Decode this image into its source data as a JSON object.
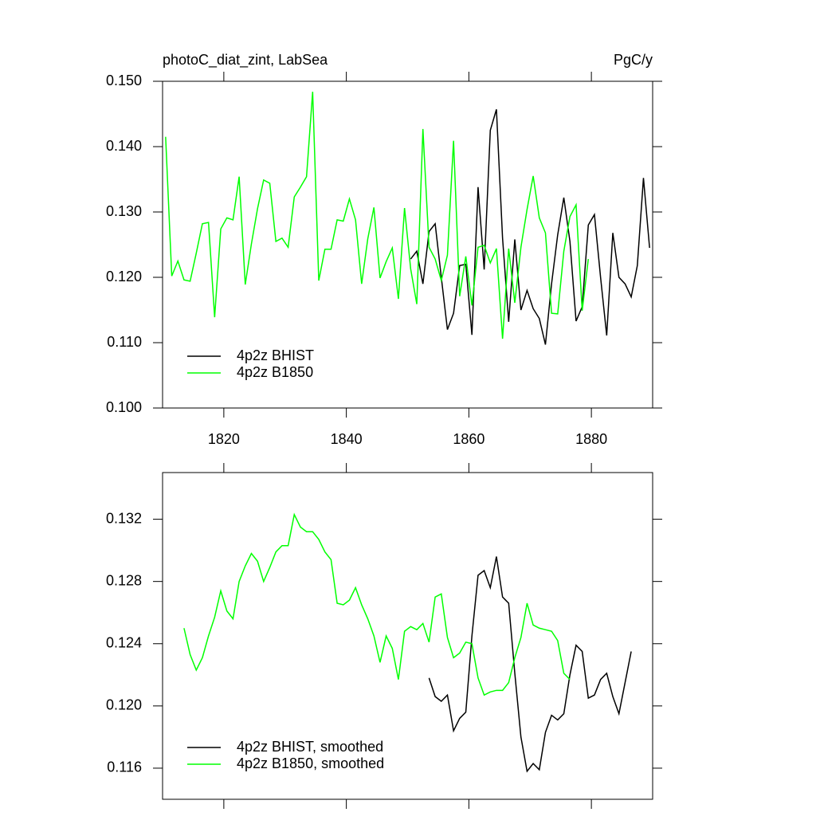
{
  "chart_data": [
    {
      "type": "line",
      "title": "photoC_diat_zint, LabSea",
      "units": "PgC/y",
      "xlim": [
        1810,
        1890
      ],
      "xticks": [
        1820,
        1840,
        1860,
        1880
      ],
      "xticklabels": true,
      "ylim": [
        0.1,
        0.15
      ],
      "yticks": [
        {
          "value": 0.1,
          "label": "0.100"
        },
        {
          "value": 0.11,
          "label": "0.110"
        },
        {
          "value": 0.12,
          "label": "0.120"
        },
        {
          "value": 0.13,
          "label": "0.130"
        },
        {
          "value": 0.14,
          "label": "0.140"
        },
        {
          "value": 0.15,
          "label": "0.150"
        }
      ],
      "legend": "lower left",
      "series": [
        {
          "name": "4p2z BHIST",
          "color": "#000000",
          "x": [
            1850.5,
            1851.5,
            1852.5,
            1853.5,
            1854.5,
            1855.5,
            1856.5,
            1857.5,
            1858.5,
            1859.5,
            1860.5,
            1861.5,
            1862.5,
            1863.5,
            1864.5,
            1865.5,
            1866.5,
            1867.5,
            1868.5,
            1869.5,
            1870.5,
            1871.5,
            1872.5,
            1873.5,
            1874.5,
            1875.5,
            1876.5,
            1877.5,
            1878.5,
            1879.5,
            1880.5,
            1881.5,
            1882.5,
            1883.5,
            1884.5,
            1885.5,
            1886.5,
            1887.5,
            1888.5,
            1889.5
          ],
          "values": [
            0.1228,
            0.124,
            0.119,
            0.127,
            0.1282,
            0.12,
            0.112,
            0.1145,
            0.1218,
            0.122,
            0.1112,
            0.1338,
            0.1212,
            0.1425,
            0.1457,
            0.126,
            0.1132,
            0.1258,
            0.115,
            0.118,
            0.1152,
            0.1137,
            0.1097,
            0.119,
            0.1265,
            0.1322,
            0.1255,
            0.1133,
            0.1155,
            0.128,
            0.1296,
            0.12,
            0.1111,
            0.1268,
            0.12,
            0.119,
            0.117,
            0.1218,
            0.1352,
            0.1245
          ]
        },
        {
          "name": "4p2z B1850",
          "color": "#00ff00",
          "x": [
            1810.5,
            1811.5,
            1812.5,
            1813.5,
            1814.5,
            1815.5,
            1816.5,
            1817.5,
            1818.5,
            1819.5,
            1820.5,
            1821.5,
            1822.5,
            1823.5,
            1824.5,
            1825.5,
            1826.5,
            1827.5,
            1828.5,
            1829.5,
            1830.5,
            1831.5,
            1832.5,
            1833.5,
            1834.5,
            1835.5,
            1836.5,
            1837.5,
            1838.5,
            1839.5,
            1840.5,
            1841.5,
            1842.5,
            1843.5,
            1844.5,
            1845.5,
            1846.5,
            1847.5,
            1848.5,
            1849.5,
            1850.5,
            1851.5,
            1852.5,
            1853.5,
            1854.5,
            1855.5,
            1856.5,
            1857.5,
            1858.5,
            1859.5,
            1860.5,
            1861.5,
            1862.5,
            1863.5,
            1864.5,
            1865.5,
            1866.5,
            1867.5,
            1868.5,
            1869.5,
            1870.5,
            1871.5,
            1872.5,
            1873.5,
            1874.5,
            1875.5,
            1876.5,
            1877.5,
            1878.5,
            1879.5
          ],
          "values": [
            0.1415,
            0.1202,
            0.1225,
            0.1196,
            0.1194,
            0.1237,
            0.1282,
            0.1284,
            0.1139,
            0.1274,
            0.1291,
            0.1288,
            0.1354,
            0.1189,
            0.1251,
            0.1305,
            0.1349,
            0.1344,
            0.1255,
            0.126,
            0.1246,
            0.1323,
            0.1338,
            0.1354,
            0.1484,
            0.1195,
            0.1243,
            0.1243,
            0.1288,
            0.1286,
            0.132,
            0.1288,
            0.119,
            0.1259,
            0.1307,
            0.1199,
            0.1224,
            0.1245,
            0.1167,
            0.1306,
            0.1213,
            0.1159,
            0.1427,
            0.1246,
            0.1228,
            0.1195,
            0.1234,
            0.1409,
            0.1171,
            0.1232,
            0.1157,
            0.1246,
            0.1249,
            0.1222,
            0.1244,
            0.1106,
            0.1244,
            0.1161,
            0.1246,
            0.1304,
            0.1355,
            0.1291,
            0.1268,
            0.1145,
            0.1144,
            0.124,
            0.1293,
            0.1311,
            0.1149,
            0.1228
          ]
        }
      ]
    },
    {
      "type": "line",
      "xlim": [
        1810,
        1890
      ],
      "xticks": [
        1820,
        1840,
        1860,
        1880
      ],
      "xticklabels": false,
      "ylim": [
        0.114,
        0.135
      ],
      "yticks": [
        0.116,
        {
          "value": 0.12,
          "label": "0.120"
        },
        0.124,
        0.128,
        0.132
      ],
      "legend": "lower left",
      "series": [
        {
          "name": "4p2z BHIST, smoothed",
          "color": "#000000",
          "x": [
            1853.5,
            1854.5,
            1855.5,
            1856.5,
            1857.5,
            1858.5,
            1859.5,
            1860.5,
            1861.5,
            1862.5,
            1863.5,
            1864.5,
            1865.5,
            1866.5,
            1867.5,
            1868.5,
            1869.5,
            1870.5,
            1871.5,
            1872.5,
            1873.5,
            1874.5,
            1875.5,
            1876.5,
            1877.5,
            1878.5,
            1879.5,
            1880.5,
            1881.5,
            1882.5,
            1883.5,
            1884.5,
            1885.5,
            1886.5
          ],
          "values": [
            0.1218,
            0.1206,
            0.1203,
            0.1207,
            0.1184,
            0.1192,
            0.1196,
            0.1245,
            0.1284,
            0.1287,
            0.1276,
            0.1296,
            0.127,
            0.1266,
            0.1221,
            0.118,
            0.1158,
            0.1163,
            0.1159,
            0.1183,
            0.1194,
            0.1191,
            0.1195,
            0.122,
            0.1239,
            0.1235,
            0.1205,
            0.1207,
            0.1217,
            0.1221,
            0.1206,
            0.1195,
            0.1215,
            0.1235
          ]
        },
        {
          "name": "4p2z B1850, smoothed",
          "color": "#00ff00",
          "x": [
            1813.5,
            1814.5,
            1815.5,
            1816.5,
            1817.5,
            1818.5,
            1819.5,
            1820.5,
            1821.5,
            1822.5,
            1823.5,
            1824.5,
            1825.5,
            1826.5,
            1827.5,
            1828.5,
            1829.5,
            1830.5,
            1831.5,
            1832.5,
            1833.5,
            1834.5,
            1835.5,
            1836.5,
            1837.5,
            1838.5,
            1839.5,
            1840.5,
            1841.5,
            1842.5,
            1843.5,
            1844.5,
            1845.5,
            1846.5,
            1847.5,
            1848.5,
            1849.5,
            1850.5,
            1851.5,
            1852.5,
            1853.5,
            1854.5,
            1855.5,
            1856.5,
            1857.5,
            1858.5,
            1859.5,
            1860.5,
            1861.5,
            1862.5,
            1863.5,
            1864.5,
            1865.5,
            1866.5,
            1867.5,
            1868.5,
            1869.5,
            1870.5,
            1871.5,
            1872.5,
            1873.5,
            1874.5,
            1875.5,
            1876.5
          ],
          "values": [
            0.125,
            0.1233,
            0.1223,
            0.1231,
            0.1245,
            0.1257,
            0.1274,
            0.1261,
            0.1256,
            0.128,
            0.129,
            0.1298,
            0.1293,
            0.128,
            0.1289,
            0.1299,
            0.1303,
            0.1303,
            0.1323,
            0.1315,
            0.1312,
            0.1312,
            0.1307,
            0.1299,
            0.1294,
            0.1266,
            0.1265,
            0.1268,
            0.1276,
            0.1265,
            0.1256,
            0.1245,
            0.1228,
            0.1245,
            0.1237,
            0.1217,
            0.1248,
            0.1251,
            0.1249,
            0.1253,
            0.1241,
            0.127,
            0.1272,
            0.1244,
            0.1231,
            0.1234,
            0.1241,
            0.124,
            0.1218,
            0.1207,
            0.1209,
            0.121,
            0.121,
            0.1215,
            0.1231,
            0.1244,
            0.1266,
            0.1252,
            0.125,
            0.1249,
            0.1248,
            0.1242,
            0.1221,
            0.1217
          ]
        }
      ]
    }
  ]
}
